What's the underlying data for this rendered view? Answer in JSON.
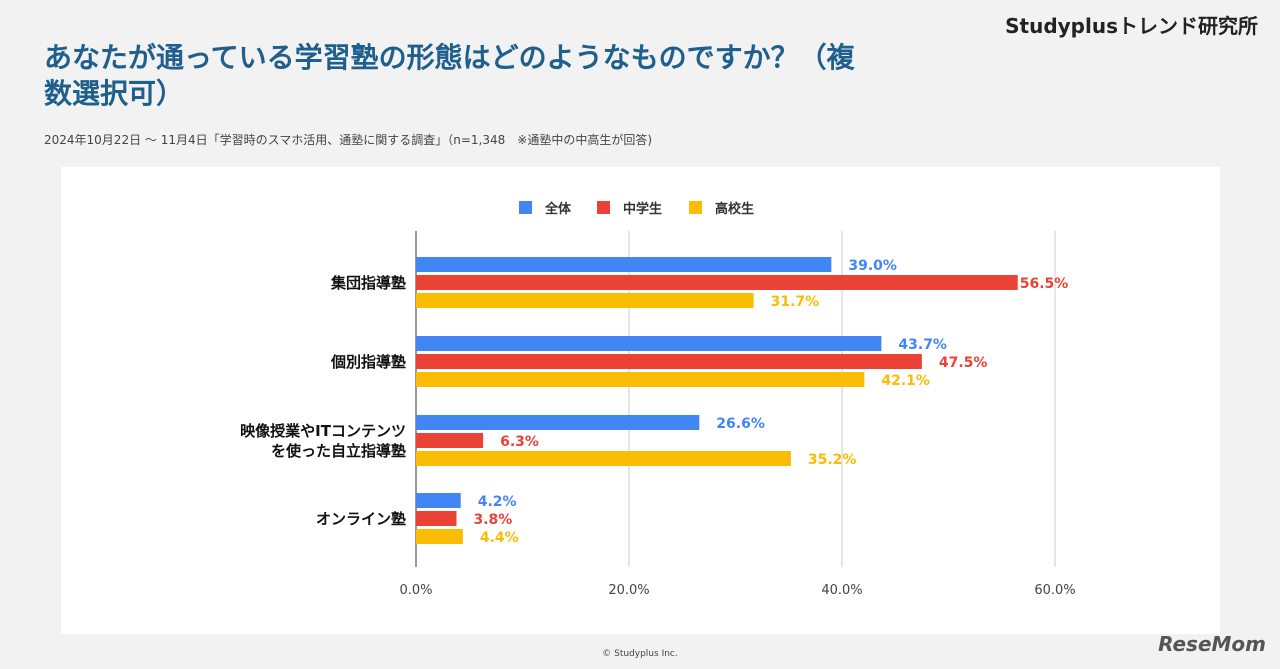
{
  "brand": "Studyplusトレンド研究所",
  "title": "あなたが通っている学習塾の形態はどのようなものですか？（複数選択可）",
  "subtitle": "2024年10月22日 ～ 11月4日「学習時のスマホ活用、通塾に関する調査」（n=1,348　※通塾中の中高生が回答)",
  "copyright": "© Studyplus Inc.",
  "logo": "ReseMom",
  "chart_data": {
    "type": "bar",
    "orientation": "horizontal",
    "categories": [
      "集団指導塾",
      "個別指導塾",
      "映像授業やITコンテンツを使った自立指導塾",
      "オンライン塾"
    ],
    "category_lines": [
      [
        "集団指導塾"
      ],
      [
        "個別指導塾"
      ],
      [
        "映像授業やITコンテンツ",
        "を使った自立指導塾"
      ],
      [
        "オンライン塾"
      ]
    ],
    "series": [
      {
        "name": "全体",
        "color": "#4285f4",
        "values": [
          39.0,
          43.7,
          26.6,
          4.2
        ]
      },
      {
        "name": "中学生",
        "color": "#ea4335",
        "values": [
          56.5,
          47.5,
          6.3,
          3.8
        ]
      },
      {
        "name": "高校生",
        "color": "#fbbc04",
        "values": [
          31.7,
          42.1,
          35.2,
          4.4
        ]
      }
    ],
    "xlim": [
      0,
      70
    ],
    "ticks": [
      0,
      20,
      40,
      60
    ],
    "tick_labels": [
      "0.0%",
      "20.0%",
      "40.0%",
      "60.0%"
    ],
    "grid": true,
    "legend": "top"
  }
}
